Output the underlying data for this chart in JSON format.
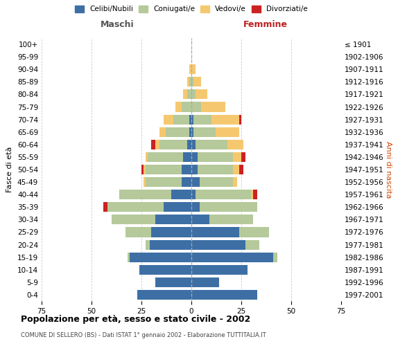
{
  "age_groups": [
    "0-4",
    "5-9",
    "10-14",
    "15-19",
    "20-24",
    "25-29",
    "30-34",
    "35-39",
    "40-44",
    "45-49",
    "50-54",
    "55-59",
    "60-64",
    "65-69",
    "70-74",
    "75-79",
    "80-84",
    "85-89",
    "90-94",
    "95-99",
    "100+"
  ],
  "birth_years": [
    "1997-2001",
    "1992-1996",
    "1987-1991",
    "1982-1986",
    "1977-1981",
    "1972-1976",
    "1967-1971",
    "1962-1966",
    "1957-1961",
    "1952-1956",
    "1947-1951",
    "1942-1946",
    "1937-1941",
    "1932-1936",
    "1927-1931",
    "1922-1926",
    "1917-1921",
    "1912-1916",
    "1907-1911",
    "1902-1906",
    "≤ 1901"
  ],
  "maschi": {
    "celibi": [
      27,
      18,
      26,
      31,
      21,
      20,
      18,
      14,
      10,
      5,
      5,
      4,
      2,
      1,
      1,
      0,
      0,
      0,
      0,
      0,
      0
    ],
    "coniugati": [
      0,
      0,
      0,
      1,
      2,
      13,
      22,
      28,
      26,
      18,
      18,
      18,
      14,
      12,
      8,
      5,
      2,
      1,
      0,
      0,
      0
    ],
    "vedovi": [
      0,
      0,
      0,
      0,
      0,
      0,
      0,
      0,
      0,
      1,
      1,
      1,
      2,
      3,
      5,
      3,
      2,
      1,
      1,
      0,
      0
    ],
    "divorziati": [
      0,
      0,
      0,
      0,
      0,
      0,
      0,
      2,
      0,
      0,
      1,
      0,
      2,
      0,
      0,
      0,
      0,
      0,
      0,
      0,
      0
    ]
  },
  "femmine": {
    "nubili": [
      33,
      14,
      28,
      41,
      27,
      24,
      9,
      4,
      2,
      4,
      3,
      3,
      2,
      1,
      1,
      0,
      0,
      0,
      0,
      0,
      0
    ],
    "coniugate": [
      0,
      0,
      0,
      2,
      7,
      15,
      22,
      29,
      28,
      17,
      18,
      18,
      16,
      11,
      9,
      5,
      2,
      1,
      0,
      0,
      0
    ],
    "vedove": [
      0,
      0,
      0,
      0,
      0,
      0,
      0,
      0,
      1,
      2,
      3,
      4,
      8,
      12,
      14,
      12,
      6,
      4,
      2,
      0,
      0
    ],
    "divorziate": [
      0,
      0,
      0,
      0,
      0,
      0,
      0,
      0,
      2,
      0,
      2,
      2,
      0,
      0,
      1,
      0,
      0,
      0,
      0,
      0,
      0
    ]
  },
  "colors": {
    "celibi": "#3d6fa5",
    "coniugati": "#b5c99a",
    "vedovi": "#f5c870",
    "divorziati": "#cc2222"
  },
  "xlim": 75,
  "title": "Popolazione per età, sesso e stato civile - 2002",
  "subtitle": "COMUNE DI SELLERO (BS) - Dati ISTAT 1° gennaio 2002 - Elaborazione TUTTITALIA.IT",
  "ylabel_left": "Fasce di età",
  "ylabel_right": "Anni di nascita",
  "xlabel_maschi": "Maschi",
  "xlabel_femmine": "Femmine",
  "legend_labels": [
    "Celibi/Nubili",
    "Coniugati/e",
    "Vedovi/e",
    "Divorziati/e"
  ],
  "bg_color": "#ffffff",
  "grid_color": "#cccccc"
}
